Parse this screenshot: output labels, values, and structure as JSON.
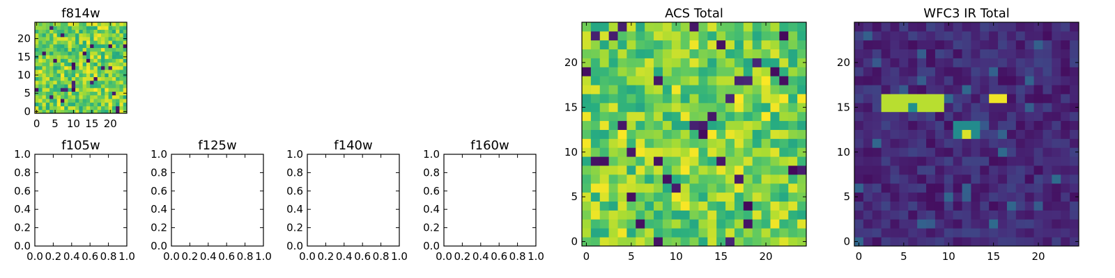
{
  "chart_data": [
    {
      "type": "heatmap",
      "title": "f814w",
      "colormap": "viridis",
      "shape": [
        25,
        25
      ],
      "origin": "lower",
      "xlim": [
        -0.5,
        24.5
      ],
      "ylim": [
        -0.5,
        24.5
      ],
      "xticks": [
        "0",
        "5",
        "10",
        "15",
        "20"
      ],
      "yticks": [
        "0",
        "5",
        "10",
        "15",
        "20"
      ],
      "value_range": [
        0,
        1
      ],
      "pattern": "noise",
      "grid": false
    },
    {
      "type": "scatter",
      "title": "f105w",
      "series": [],
      "xlim": [
        0,
        1
      ],
      "ylim": [
        0,
        1
      ],
      "xticks": [
        "0.0",
        "0.2",
        "0.4",
        "0.6",
        "0.8",
        "1.0"
      ],
      "yticks": [
        "0.0",
        "0.2",
        "0.4",
        "0.6",
        "0.8",
        "1.0"
      ],
      "grid": false
    },
    {
      "type": "scatter",
      "title": "f125w",
      "series": [],
      "xlim": [
        0,
        1
      ],
      "ylim": [
        0,
        1
      ],
      "xticks": [
        "0.0",
        "0.2",
        "0.4",
        "0.6",
        "0.8",
        "1.0"
      ],
      "yticks": [
        "0.0",
        "0.2",
        "0.4",
        "0.6",
        "0.8",
        "1.0"
      ],
      "grid": false
    },
    {
      "type": "scatter",
      "title": "f140w",
      "series": [],
      "xlim": [
        0,
        1
      ],
      "ylim": [
        0,
        1
      ],
      "xticks": [
        "0.0",
        "0.2",
        "0.4",
        "0.6",
        "0.8",
        "1.0"
      ],
      "yticks": [
        "0.0",
        "0.2",
        "0.4",
        "0.6",
        "0.8",
        "1.0"
      ],
      "grid": false
    },
    {
      "type": "scatter",
      "title": "f160w",
      "series": [],
      "xlim": [
        0,
        1
      ],
      "ylim": [
        0,
        1
      ],
      "xticks": [
        "0.0",
        "0.2",
        "0.4",
        "0.6",
        "0.8",
        "1.0"
      ],
      "yticks": [
        "0.0",
        "0.2",
        "0.4",
        "0.6",
        "0.8",
        "1.0"
      ],
      "grid": false
    },
    {
      "type": "heatmap",
      "title": "ACS Total",
      "colormap": "viridis",
      "shape": [
        25,
        25
      ],
      "origin": "lower",
      "xlim": [
        -0.5,
        24.5
      ],
      "ylim": [
        -0.5,
        24.5
      ],
      "xticks": [
        "0",
        "5",
        "10",
        "15",
        "20"
      ],
      "yticks": [
        "0",
        "5",
        "10",
        "15",
        "20"
      ],
      "value_range": [
        0,
        1
      ],
      "pattern": "noise",
      "grid": false
    },
    {
      "type": "heatmap",
      "title": "WFC3 IR Total",
      "colormap": "viridis",
      "shape": [
        25,
        25
      ],
      "origin": "lower",
      "xlim": [
        -0.5,
        24.5
      ],
      "ylim": [
        -0.5,
        24.5
      ],
      "xticks": [
        "0",
        "5",
        "10",
        "15",
        "20"
      ],
      "yticks": [
        "0",
        "5",
        "10",
        "15",
        "20"
      ],
      "value_range": [
        0,
        1
      ],
      "pattern": "background",
      "sources": [
        {
          "rows": [
            16
          ],
          "cols": [
            15,
            16
          ],
          "value": 0.98
        },
        {
          "rows": [
            15,
            16
          ],
          "cols": [
            3,
            9
          ],
          "value": 0.9
        },
        {
          "rows": [
            15
          ],
          "cols": [
            6,
            6
          ],
          "value": 0.5
        },
        {
          "rows": [
            12,
            13
          ],
          "cols": [
            11,
            13
          ],
          "value": 0.48
        },
        {
          "rows": [
            12
          ],
          "cols": [
            12,
            12
          ],
          "value": 0.95
        }
      ],
      "grid": false
    }
  ]
}
